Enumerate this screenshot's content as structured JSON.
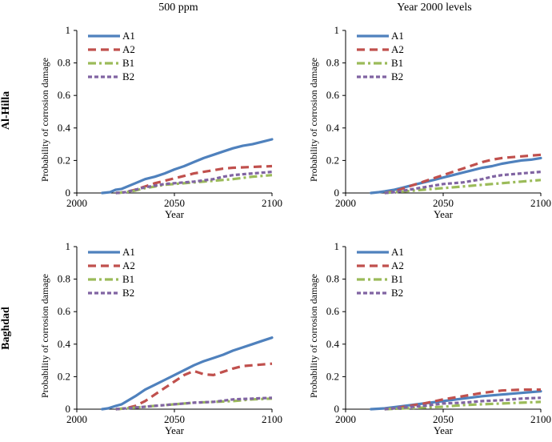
{
  "column_titles": [
    "500 ppm",
    "Year 2000 levels"
  ],
  "row_titles": [
    "Al-Hilla",
    "Baghdad"
  ],
  "chart_data": [
    {
      "type": "line",
      "panel": "Al-Hilla / 500 ppm",
      "xlabel": "Year",
      "ylabel": "Probability of corrosion damage",
      "xlim": [
        2000,
        2100
      ],
      "ylim": [
        0,
        1
      ],
      "xticks": [
        2000,
        2050,
        2100
      ],
      "yticks": [
        0,
        0.2,
        0.4,
        0.6,
        0.8,
        1
      ],
      "legend": "top-left",
      "series": [
        {
          "name": "A1",
          "color": "#4f81bd",
          "dash": "solid",
          "points": [
            [
              2013,
              0
            ],
            [
              2017,
              0.005
            ],
            [
              2020,
              0.02
            ],
            [
              2023,
              0.025
            ],
            [
              2030,
              0.06
            ],
            [
              2035,
              0.085
            ],
            [
              2040,
              0.1
            ],
            [
              2045,
              0.12
            ],
            [
              2050,
              0.145
            ],
            [
              2055,
              0.165
            ],
            [
              2060,
              0.19
            ],
            [
              2065,
              0.215
            ],
            [
              2070,
              0.235
            ],
            [
              2075,
              0.255
            ],
            [
              2080,
              0.275
            ],
            [
              2085,
              0.29
            ],
            [
              2090,
              0.3
            ],
            [
              2095,
              0.315
            ],
            [
              2100,
              0.33
            ]
          ]
        },
        {
          "name": "A2",
          "color": "#c0504d",
          "dash": "dash",
          "points": [
            [
              2020,
              0
            ],
            [
              2025,
              0.005
            ],
            [
              2030,
              0.02
            ],
            [
              2035,
              0.04
            ],
            [
              2040,
              0.06
            ],
            [
              2045,
              0.075
            ],
            [
              2050,
              0.09
            ],
            [
              2055,
              0.105
            ],
            [
              2060,
              0.12
            ],
            [
              2065,
              0.13
            ],
            [
              2070,
              0.14
            ],
            [
              2075,
              0.15
            ],
            [
              2080,
              0.155
            ],
            [
              2090,
              0.16
            ],
            [
              2100,
              0.165
            ]
          ]
        },
        {
          "name": "B1",
          "color": "#9bbb59",
          "dash": "dashdot",
          "points": [
            [
              2020,
              0
            ],
            [
              2025,
              0.005
            ],
            [
              2030,
              0.015
            ],
            [
              2035,
              0.03
            ],
            [
              2040,
              0.04
            ],
            [
              2045,
              0.05
            ],
            [
              2050,
              0.055
            ],
            [
              2060,
              0.065
            ],
            [
              2070,
              0.075
            ],
            [
              2080,
              0.085
            ],
            [
              2090,
              0.1
            ],
            [
              2100,
              0.11
            ]
          ]
        },
        {
          "name": "B2",
          "color": "#8064a2",
          "dash": "dot",
          "points": [
            [
              2020,
              0
            ],
            [
              2025,
              0.005
            ],
            [
              2030,
              0.02
            ],
            [
              2035,
              0.035
            ],
            [
              2040,
              0.045
            ],
            [
              2045,
              0.055
            ],
            [
              2050,
              0.06
            ],
            [
              2060,
              0.07
            ],
            [
              2070,
              0.085
            ],
            [
              2075,
              0.1
            ],
            [
              2080,
              0.11
            ],
            [
              2090,
              0.12
            ],
            [
              2100,
              0.13
            ]
          ]
        }
      ]
    },
    {
      "type": "line",
      "panel": "Al-Hilla / Year 2000 levels",
      "xlabel": "Year",
      "ylabel": "Probability of corrosion damage",
      "xlim": [
        2000,
        2100
      ],
      "ylim": [
        0,
        1
      ],
      "xticks": [
        2000,
        2050,
        2100
      ],
      "yticks": [
        0,
        0.2,
        0.4,
        0.6,
        0.8,
        1
      ],
      "legend": "top-left",
      "series": [
        {
          "name": "A1",
          "color": "#4f81bd",
          "dash": "solid",
          "points": [
            [
              2013,
              0
            ],
            [
              2017,
              0.005
            ],
            [
              2020,
              0.01
            ],
            [
              2025,
              0.02
            ],
            [
              2030,
              0.035
            ],
            [
              2035,
              0.05
            ],
            [
              2040,
              0.065
            ],
            [
              2045,
              0.08
            ],
            [
              2050,
              0.095
            ],
            [
              2055,
              0.11
            ],
            [
              2060,
              0.125
            ],
            [
              2065,
              0.14
            ],
            [
              2070,
              0.155
            ],
            [
              2075,
              0.165
            ],
            [
              2080,
              0.18
            ],
            [
              2085,
              0.19
            ],
            [
              2090,
              0.2
            ],
            [
              2095,
              0.205
            ],
            [
              2100,
              0.215
            ]
          ]
        },
        {
          "name": "A2",
          "color": "#c0504d",
          "dash": "dash",
          "points": [
            [
              2020,
              0
            ],
            [
              2025,
              0.01
            ],
            [
              2030,
              0.03
            ],
            [
              2035,
              0.05
            ],
            [
              2040,
              0.07
            ],
            [
              2045,
              0.09
            ],
            [
              2050,
              0.11
            ],
            [
              2055,
              0.13
            ],
            [
              2060,
              0.15
            ],
            [
              2065,
              0.17
            ],
            [
              2070,
              0.19
            ],
            [
              2075,
              0.205
            ],
            [
              2080,
              0.215
            ],
            [
              2085,
              0.22
            ],
            [
              2090,
              0.225
            ],
            [
              2100,
              0.235
            ]
          ]
        },
        {
          "name": "B1",
          "color": "#9bbb59",
          "dash": "dashdot",
          "points": [
            [
              2020,
              0
            ],
            [
              2025,
              0.005
            ],
            [
              2030,
              0.01
            ],
            [
              2035,
              0.015
            ],
            [
              2040,
              0.02
            ],
            [
              2045,
              0.025
            ],
            [
              2050,
              0.03
            ],
            [
              2060,
              0.04
            ],
            [
              2070,
              0.05
            ],
            [
              2080,
              0.06
            ],
            [
              2090,
              0.07
            ],
            [
              2100,
              0.08
            ]
          ]
        },
        {
          "name": "B2",
          "color": "#8064a2",
          "dash": "dot",
          "points": [
            [
              2020,
              0
            ],
            [
              2025,
              0.005
            ],
            [
              2030,
              0.015
            ],
            [
              2035,
              0.025
            ],
            [
              2040,
              0.035
            ],
            [
              2045,
              0.045
            ],
            [
              2050,
              0.055
            ],
            [
              2060,
              0.065
            ],
            [
              2070,
              0.085
            ],
            [
              2075,
              0.1
            ],
            [
              2080,
              0.11
            ],
            [
              2090,
              0.12
            ],
            [
              2100,
              0.13
            ]
          ]
        }
      ]
    },
    {
      "type": "line",
      "panel": "Baghdad / 500 ppm",
      "xlabel": "Year",
      "ylabel": "Probability of corrosion damage",
      "xlim": [
        2000,
        2100
      ],
      "ylim": [
        0,
        1
      ],
      "xticks": [
        2000,
        2050,
        2100
      ],
      "yticks": [
        0,
        0.2,
        0.4,
        0.6,
        0.8,
        1
      ],
      "legend": "top-left",
      "series": [
        {
          "name": "A1",
          "color": "#4f81bd",
          "dash": "solid",
          "points": [
            [
              2013,
              0
            ],
            [
              2016,
              0.005
            ],
            [
              2020,
              0.02
            ],
            [
              2023,
              0.03
            ],
            [
              2030,
              0.08
            ],
            [
              2035,
              0.12
            ],
            [
              2040,
              0.15
            ],
            [
              2045,
              0.18
            ],
            [
              2050,
              0.21
            ],
            [
              2055,
              0.24
            ],
            [
              2060,
              0.27
            ],
            [
              2065,
              0.295
            ],
            [
              2070,
              0.315
            ],
            [
              2075,
              0.335
            ],
            [
              2080,
              0.36
            ],
            [
              2085,
              0.38
            ],
            [
              2090,
              0.4
            ],
            [
              2095,
              0.42
            ],
            [
              2100,
              0.44
            ]
          ]
        },
        {
          "name": "A2",
          "color": "#c0504d",
          "dash": "dash",
          "points": [
            [
              2020,
              0
            ],
            [
              2025,
              0.005
            ],
            [
              2030,
              0.02
            ],
            [
              2035,
              0.05
            ],
            [
              2040,
              0.09
            ],
            [
              2045,
              0.13
            ],
            [
              2050,
              0.17
            ],
            [
              2055,
              0.21
            ],
            [
              2060,
              0.235
            ],
            [
              2065,
              0.215
            ],
            [
              2070,
              0.21
            ],
            [
              2075,
              0.23
            ],
            [
              2080,
              0.25
            ],
            [
              2085,
              0.265
            ],
            [
              2090,
              0.27
            ],
            [
              2095,
              0.275
            ],
            [
              2100,
              0.28
            ]
          ]
        },
        {
          "name": "B1",
          "color": "#9bbb59",
          "dash": "dashdot",
          "points": [
            [
              2020,
              0
            ],
            [
              2025,
              0.005
            ],
            [
              2030,
              0.01
            ],
            [
              2040,
              0.02
            ],
            [
              2050,
              0.03
            ],
            [
              2060,
              0.04
            ],
            [
              2070,
              0.045
            ],
            [
              2080,
              0.05
            ],
            [
              2090,
              0.06
            ],
            [
              2100,
              0.065
            ]
          ]
        },
        {
          "name": "B2",
          "color": "#8064a2",
          "dash": "dot",
          "points": [
            [
              2020,
              0
            ],
            [
              2025,
              0.005
            ],
            [
              2030,
              0.01
            ],
            [
              2040,
              0.02
            ],
            [
              2050,
              0.03
            ],
            [
              2060,
              0.04
            ],
            [
              2070,
              0.045
            ],
            [
              2080,
              0.06
            ],
            [
              2090,
              0.065
            ],
            [
              2100,
              0.07
            ]
          ]
        }
      ]
    },
    {
      "type": "line",
      "panel": "Baghdad / Year 2000 levels",
      "xlabel": "Year",
      "ylabel": "Probability of corrosion damage",
      "xlim": [
        2000,
        2100
      ],
      "ylim": [
        0,
        1
      ],
      "xticks": [
        2000,
        2050,
        2100
      ],
      "yticks": [
        0,
        0.2,
        0.4,
        0.6,
        0.8,
        1
      ],
      "legend": "top-left",
      "series": [
        {
          "name": "A1",
          "color": "#4f81bd",
          "dash": "solid",
          "points": [
            [
              2013,
              0
            ],
            [
              2020,
              0.005
            ],
            [
              2030,
              0.02
            ],
            [
              2040,
              0.035
            ],
            [
              2050,
              0.05
            ],
            [
              2060,
              0.065
            ],
            [
              2070,
              0.08
            ],
            [
              2080,
              0.09
            ],
            [
              2090,
              0.1
            ],
            [
              2100,
              0.11
            ]
          ]
        },
        {
          "name": "A2",
          "color": "#c0504d",
          "dash": "dash",
          "points": [
            [
              2020,
              0
            ],
            [
              2025,
              0.005
            ],
            [
              2030,
              0.015
            ],
            [
              2040,
              0.035
            ],
            [
              2050,
              0.06
            ],
            [
              2060,
              0.08
            ],
            [
              2070,
              0.1
            ],
            [
              2080,
              0.115
            ],
            [
              2090,
              0.12
            ],
            [
              2100,
              0.12
            ]
          ]
        },
        {
          "name": "B1",
          "color": "#9bbb59",
          "dash": "dashdot",
          "points": [
            [
              2020,
              0
            ],
            [
              2030,
              0.005
            ],
            [
              2040,
              0.01
            ],
            [
              2050,
              0.015
            ],
            [
              2060,
              0.025
            ],
            [
              2070,
              0.03
            ],
            [
              2080,
              0.035
            ],
            [
              2090,
              0.04
            ],
            [
              2100,
              0.045
            ]
          ]
        },
        {
          "name": "B2",
          "color": "#8064a2",
          "dash": "dot",
          "points": [
            [
              2020,
              0
            ],
            [
              2030,
              0.01
            ],
            [
              2040,
              0.02
            ],
            [
              2050,
              0.035
            ],
            [
              2060,
              0.04
            ],
            [
              2070,
              0.05
            ],
            [
              2080,
              0.055
            ],
            [
              2090,
              0.065
            ],
            [
              2100,
              0.07
            ]
          ]
        }
      ]
    }
  ]
}
